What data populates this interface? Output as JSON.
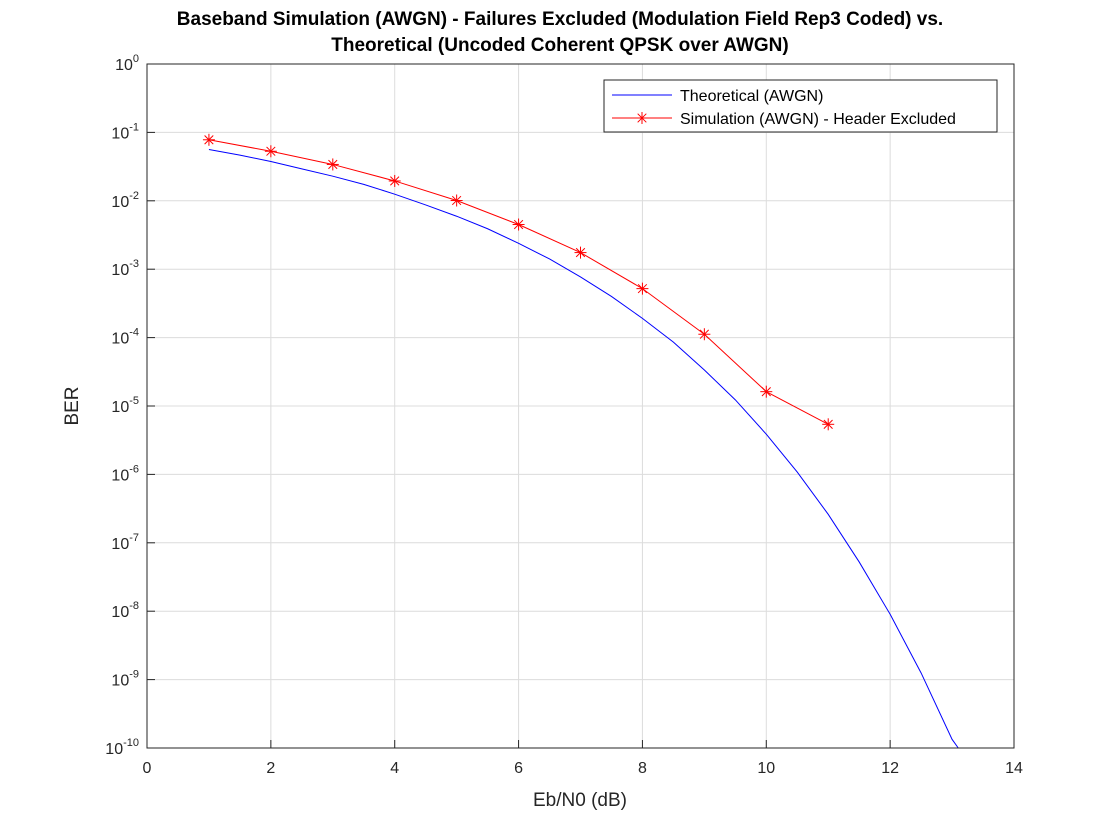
{
  "chart_data": {
    "type": "line",
    "title_lines": [
      "Baseband Simulation (AWGN) - Failures Excluded (Modulation Field Rep3 Coded) vs.",
      "Theoretical (Uncoded Coherent QPSK over AWGN)"
    ],
    "xlabel": "Eb/N0 (dB)",
    "ylabel": "BER",
    "xlim": [
      0,
      14
    ],
    "ylim": [
      1e-10,
      1
    ],
    "y_scale": "log",
    "grid": true,
    "legend_position": "top-right",
    "x_ticks": [
      {
        "value": 0,
        "label": "0"
      },
      {
        "value": 2,
        "label": "2"
      },
      {
        "value": 4,
        "label": "4"
      },
      {
        "value": 6,
        "label": "6"
      },
      {
        "value": 8,
        "label": "8"
      },
      {
        "value": 10,
        "label": "10"
      },
      {
        "value": 12,
        "label": "12"
      },
      {
        "value": 14,
        "label": "14"
      }
    ],
    "y_ticks": [
      {
        "exp": 0,
        "base": "10",
        "power": "0"
      },
      {
        "exp": -1,
        "base": "10",
        "power": "-1"
      },
      {
        "exp": -2,
        "base": "10",
        "power": "-2"
      },
      {
        "exp": -3,
        "base": "10",
        "power": "-3"
      },
      {
        "exp": -4,
        "base": "10",
        "power": "-4"
      },
      {
        "exp": -5,
        "base": "10",
        "power": "-5"
      },
      {
        "exp": -6,
        "base": "10",
        "power": "-6"
      },
      {
        "exp": -7,
        "base": "10",
        "power": "-7"
      },
      {
        "exp": -8,
        "base": "10",
        "power": "-8"
      },
      {
        "exp": -9,
        "base": "10",
        "power": "-9"
      },
      {
        "exp": -10,
        "base": "10",
        "power": "-10"
      }
    ],
    "series": [
      {
        "name": "Theoretical (AWGN)",
        "color": "#0000ff",
        "marker": "none",
        "x": [
          1,
          1.5,
          2,
          2.5,
          3,
          3.5,
          4,
          4.5,
          5,
          5.5,
          6,
          6.5,
          7,
          7.5,
          8,
          8.5,
          9,
          9.5,
          10,
          10.5,
          11,
          11.5,
          12,
          12.5,
          13,
          13.1
        ],
        "y": [
          0.0563,
          0.0466,
          0.0375,
          0.0293,
          0.0229,
          0.0174,
          0.0125,
          0.0087,
          0.00595,
          0.0039,
          0.00239,
          0.00141,
          0.00077,
          0.0004,
          0.000191,
          8.6e-05,
          3.36e-05,
          1.23e-05,
          3.87e-06,
          1.08e-06,
          2.61e-07,
          5.25e-08,
          9.01e-09,
          1.25e-09,
          1.34e-10,
          1e-10
        ]
      },
      {
        "name": "Simulation (AWGN) - Header Excluded",
        "color": "#ff0000",
        "marker": "asterisk",
        "x": [
          1,
          2,
          3,
          4,
          5,
          6,
          7,
          8,
          9,
          10,
          11
        ],
        "y": [
          0.078,
          0.053,
          0.034,
          0.0195,
          0.0101,
          0.0045,
          0.00175,
          0.00052,
          0.000112,
          1.62e-05,
          5.4e-06
        ]
      }
    ]
  }
}
